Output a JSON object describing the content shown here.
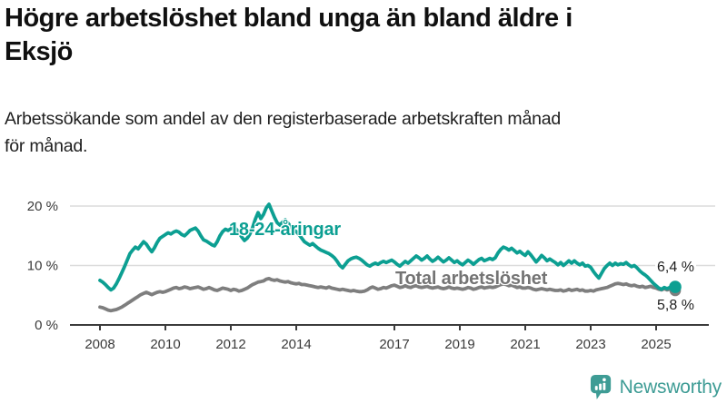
{
  "header": {
    "title_line1": "Högre arbetslöshet bland unga än bland äldre i",
    "title_line2": "Eksjö",
    "subtitle_line1": "Arbetssökande som andel av den registerbaserade arbetskraften månad",
    "subtitle_line2": "för månad."
  },
  "footer": {
    "brand": "Newsworthy",
    "brand_color": "#3E9C95"
  },
  "chart_data": {
    "type": "line",
    "unit": "%",
    "frequency": "monthly",
    "x_start": "2008-01",
    "x_end": "2025-08",
    "x_tick_years": [
      2008,
      2010,
      2012,
      2014,
      2017,
      2019,
      2021,
      2023,
      2025
    ],
    "y_ticks": [
      0,
      10,
      20
    ],
    "y_tick_labels": [
      "0 %",
      "10 %",
      "20 %"
    ],
    "ylim": [
      0,
      21.5
    ],
    "grid": "horizontal",
    "legend": "inline-labels",
    "series": [
      {
        "id": "youth",
        "name": "18-24-åringar",
        "color": "#0C9F92",
        "end_value": 6.4,
        "end_label": "6,4 %",
        "values": [
          7.5,
          7.2,
          6.8,
          6.3,
          5.9,
          6.2,
          6.9,
          7.8,
          8.8,
          9.8,
          10.9,
          12.0,
          12.6,
          13.1,
          12.8,
          13.4,
          14.0,
          13.6,
          12.9,
          12.3,
          13.0,
          13.9,
          14.6,
          14.9,
          15.2,
          15.5,
          15.3,
          15.6,
          15.8,
          15.6,
          15.2,
          15.0,
          15.4,
          15.9,
          16.1,
          16.3,
          15.8,
          15.0,
          14.3,
          14.1,
          13.8,
          13.5,
          13.3,
          14.0,
          15.0,
          15.7,
          16.1,
          15.9,
          16.2,
          16.5,
          16.1,
          15.5,
          14.8,
          14.2,
          14.6,
          15.3,
          16.4,
          17.8,
          18.9,
          17.9,
          18.6,
          19.7,
          20.3,
          19.2,
          18.1,
          17.2,
          16.8,
          17.3,
          17.7,
          17.1,
          16.5,
          16.0,
          15.7,
          15.2,
          14.6,
          14.0,
          13.7,
          13.4,
          13.7,
          13.3,
          12.9,
          12.6,
          12.4,
          12.2,
          12.0,
          11.7,
          11.3,
          10.7,
          10.0,
          9.6,
          10.2,
          10.8,
          11.1,
          11.3,
          11.4,
          11.2,
          10.9,
          10.5,
          10.1,
          9.9,
          10.2,
          10.4,
          10.2,
          10.5,
          10.7,
          10.5,
          10.7,
          10.9,
          10.6,
          10.2,
          9.9,
          10.3,
          10.7,
          10.4,
          10.8,
          11.2,
          11.6,
          11.3,
          10.9,
          11.2,
          11.6,
          11.1,
          10.7,
          11.0,
          11.4,
          11.0,
          10.6,
          10.9,
          11.3,
          10.9,
          10.5,
          10.8,
          10.4,
          10.1,
          10.5,
          10.9,
          10.6,
          10.2,
          10.6,
          11.0,
          11.2,
          10.8,
          11.0,
          11.2,
          11.0,
          11.3,
          12.1,
          12.7,
          13.1,
          12.9,
          12.6,
          12.9,
          12.5,
          12.1,
          12.4,
          12.0,
          11.7,
          12.3,
          11.8,
          11.2,
          10.6,
          11.1,
          11.7,
          11.3,
          10.8,
          11.1,
          10.8,
          10.5,
          10.1,
          10.5,
          10.0,
          10.4,
          10.8,
          10.4,
          10.8,
          10.4,
          10.1,
          10.4,
          9.9,
          10.0,
          9.7,
          9.0,
          8.4,
          7.9,
          8.7,
          9.5,
          10.0,
          10.4,
          10.0,
          10.4,
          10.1,
          10.3,
          10.2,
          10.5,
          10.1,
          9.8,
          10.0,
          9.6,
          9.1,
          8.7,
          8.4,
          8.0,
          7.5,
          7.0,
          6.6,
          6.2,
          6.0,
          6.3,
          6.1,
          6.3,
          6.2,
          6.4
        ]
      },
      {
        "id": "total",
        "name": "Total arbetslöshet",
        "color": "#7E7E7E",
        "label_color": "#747474",
        "end_value": 5.8,
        "end_label": "5,8 %",
        "values": [
          3.0,
          2.9,
          2.7,
          2.5,
          2.4,
          2.5,
          2.6,
          2.8,
          3.0,
          3.3,
          3.6,
          3.9,
          4.2,
          4.5,
          4.8,
          5.1,
          5.3,
          5.5,
          5.3,
          5.1,
          5.3,
          5.5,
          5.6,
          5.5,
          5.6,
          5.8,
          6.0,
          6.2,
          6.3,
          6.1,
          6.2,
          6.4,
          6.3,
          6.1,
          6.2,
          6.3,
          6.4,
          6.2,
          6.0,
          6.1,
          6.3,
          6.1,
          5.9,
          5.8,
          6.0,
          6.2,
          6.1,
          6.0,
          5.8,
          6.0,
          5.9,
          5.7,
          5.8,
          6.0,
          6.2,
          6.5,
          6.8,
          7.0,
          7.2,
          7.3,
          7.4,
          7.7,
          7.8,
          7.6,
          7.5,
          7.6,
          7.4,
          7.3,
          7.2,
          7.3,
          7.1,
          7.0,
          6.9,
          7.0,
          6.8,
          6.8,
          6.7,
          6.6,
          6.5,
          6.4,
          6.3,
          6.4,
          6.3,
          6.2,
          6.4,
          6.2,
          6.1,
          6.0,
          5.9,
          6.0,
          5.9,
          5.8,
          5.7,
          5.8,
          5.7,
          5.6,
          5.6,
          5.7,
          5.9,
          6.2,
          6.4,
          6.2,
          6.0,
          6.1,
          6.3,
          6.2,
          6.4,
          6.6,
          6.7,
          6.5,
          6.3,
          6.4,
          6.6,
          6.4,
          6.3,
          6.5,
          6.6,
          6.4,
          6.3,
          6.4,
          6.5,
          6.3,
          6.2,
          6.3,
          6.4,
          6.2,
          6.1,
          6.2,
          6.4,
          6.2,
          6.1,
          6.2,
          6.1,
          6.0,
          6.1,
          6.3,
          6.2,
          6.0,
          6.1,
          6.3,
          6.4,
          6.2,
          6.3,
          6.4,
          6.3,
          6.4,
          6.6,
          6.8,
          6.9,
          6.8,
          6.6,
          6.7,
          6.5,
          6.3,
          6.4,
          6.2,
          6.2,
          6.3,
          6.2,
          6.0,
          5.9,
          6.0,
          6.1,
          6.0,
          5.9,
          6.0,
          5.9,
          5.8,
          5.8,
          5.9,
          5.7,
          5.8,
          6.0,
          5.8,
          5.9,
          6.0,
          5.8,
          5.9,
          5.7,
          5.7,
          5.8,
          5.7,
          5.9,
          6.0,
          6.1,
          6.2,
          6.3,
          6.5,
          6.7,
          6.9,
          7.0,
          6.9,
          6.8,
          6.9,
          6.7,
          6.6,
          6.7,
          6.5,
          6.4,
          6.5,
          6.3,
          6.4,
          6.5,
          6.3,
          6.2,
          6.0,
          5.9,
          6.1,
          5.9,
          6.0,
          5.8,
          5.8
        ]
      }
    ]
  }
}
